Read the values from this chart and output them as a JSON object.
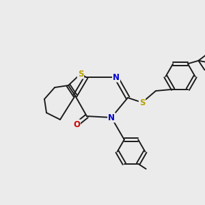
{
  "background_color": "#ebebeb",
  "bond_color": "#1a1a1a",
  "S_color": "#b8a000",
  "N_color": "#0000cc",
  "O_color": "#cc0000",
  "figsize": [
    3.0,
    3.0
  ],
  "dpi": 100,
  "xlim": [
    0,
    10
  ],
  "ylim": [
    0,
    10
  ]
}
